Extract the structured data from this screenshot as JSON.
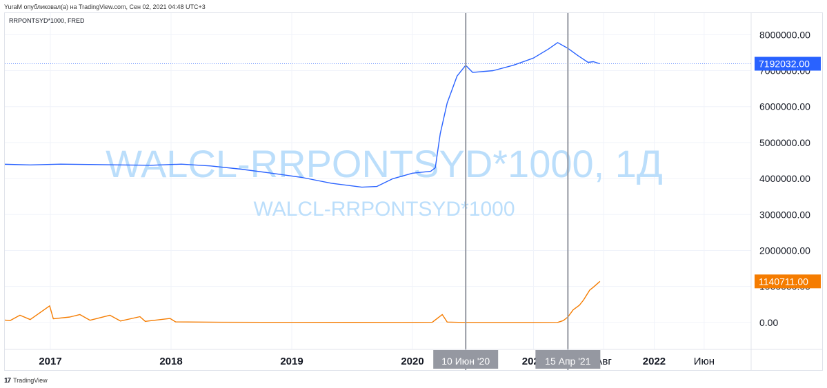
{
  "publish_line": "YuraM опубликовал(а) на TradingView.com, Сен 02, 2021 04:48 UTC+3",
  "legend_label": "RRPONTSYD*1000, FRED",
  "watermark_main": "WALCL-RRPONTSYD*1000, 1Д",
  "watermark_sub": "WALCL-RRPONTSYD*1000",
  "footer": {
    "logo": "17",
    "brand": "TradingView"
  },
  "colors": {
    "walcl_series": "#2962ff",
    "rrp_series": "#f57c00",
    "watermark": "#bbdefb",
    "grid": "#f0f3fa",
    "crosshair": "#9598a1",
    "label_bg": "#9598a1"
  },
  "chart_data": {
    "type": "line",
    "title": "",
    "xlabel": "",
    "ylabel": "",
    "ylim": [
      -750000,
      8600000
    ],
    "x_ticks": [
      "2017",
      "2018",
      "2019",
      "2020",
      "2021",
      "Авг",
      "2022",
      "Июн"
    ],
    "y_ticks": [
      "8000000.00",
      "7000000.00",
      "6000000.00",
      "5000000.00",
      "4000000.00",
      "3000000.00",
      "2000000.00",
      "1000000.00",
      "0.00"
    ],
    "grid": true,
    "series": [
      {
        "name": "WALCL-RRPONTSYD*1000",
        "color": "#2962ff",
        "last_value_label": "7192032.00",
        "last_value": 7192032,
        "points": [
          [
            "2016-08-01",
            4400000
          ],
          [
            "2016-11-01",
            4380000
          ],
          [
            "2017-02-01",
            4400000
          ],
          [
            "2017-05-01",
            4390000
          ],
          [
            "2017-08-01",
            4380000
          ],
          [
            "2017-11-01",
            4370000
          ],
          [
            "2018-02-01",
            4400000
          ],
          [
            "2018-05-01",
            4350000
          ],
          [
            "2018-08-01",
            4260000
          ],
          [
            "2018-11-01",
            4150000
          ],
          [
            "2019-02-01",
            4030000
          ],
          [
            "2019-05-01",
            3870000
          ],
          [
            "2019-08-01",
            3760000
          ],
          [
            "2019-09-15",
            3780000
          ],
          [
            "2019-11-01",
            3990000
          ],
          [
            "2020-01-01",
            4150000
          ],
          [
            "2020-02-25",
            4200000
          ],
          [
            "2020-03-10",
            4300000
          ],
          [
            "2020-03-25",
            5250000
          ],
          [
            "2020-04-15",
            6100000
          ],
          [
            "2020-05-15",
            6850000
          ],
          [
            "2020-06-10",
            7150000
          ],
          [
            "2020-07-01",
            6950000
          ],
          [
            "2020-09-01",
            7000000
          ],
          [
            "2020-11-01",
            7150000
          ],
          [
            "2021-01-01",
            7350000
          ],
          [
            "2021-02-15",
            7600000
          ],
          [
            "2021-03-15",
            7780000
          ],
          [
            "2021-04-15",
            7620000
          ],
          [
            "2021-05-15",
            7420000
          ],
          [
            "2021-06-15",
            7230000
          ],
          [
            "2021-07-01",
            7250000
          ],
          [
            "2021-07-21",
            7192032
          ]
        ]
      },
      {
        "name": "RRPONTSYD*1000",
        "color": "#f57c00",
        "last_value_label": "1140711.00",
        "last_value": 1140711,
        "points": [
          [
            "2016-08-01",
            80000
          ],
          [
            "2016-09-01",
            50000
          ],
          [
            "2016-10-01",
            200000
          ],
          [
            "2016-11-01",
            80000
          ],
          [
            "2016-12-30",
            460000
          ],
          [
            "2017-01-10",
            100000
          ],
          [
            "2017-03-01",
            150000
          ],
          [
            "2017-03-31",
            220000
          ],
          [
            "2017-05-01",
            60000
          ],
          [
            "2017-06-30",
            200000
          ],
          [
            "2017-08-01",
            40000
          ],
          [
            "2017-09-29",
            160000
          ],
          [
            "2017-10-15",
            30000
          ],
          [
            "2017-12-29",
            110000
          ],
          [
            "2018-01-15",
            15000
          ],
          [
            "2018-06-01",
            5000
          ],
          [
            "2019-01-01",
            3000
          ],
          [
            "2019-12-01",
            2000
          ],
          [
            "2020-03-01",
            5000
          ],
          [
            "2020-03-31",
            220000
          ],
          [
            "2020-04-15",
            10000
          ],
          [
            "2020-06-10",
            0
          ],
          [
            "2021-01-01",
            0
          ],
          [
            "2021-03-15",
            1000
          ],
          [
            "2021-04-01",
            50000
          ],
          [
            "2021-04-15",
            150000
          ],
          [
            "2021-05-01",
            350000
          ],
          [
            "2021-05-20",
            480000
          ],
          [
            "2021-06-01",
            620000
          ],
          [
            "2021-06-20",
            900000
          ],
          [
            "2021-07-01",
            980000
          ],
          [
            "2021-07-21",
            1140711
          ]
        ]
      }
    ],
    "crosshairs": [
      {
        "date": "2020-06-10",
        "label": "10 Июн '20"
      },
      {
        "date": "2021-04-15",
        "label": "15 Апр '21"
      }
    ]
  }
}
